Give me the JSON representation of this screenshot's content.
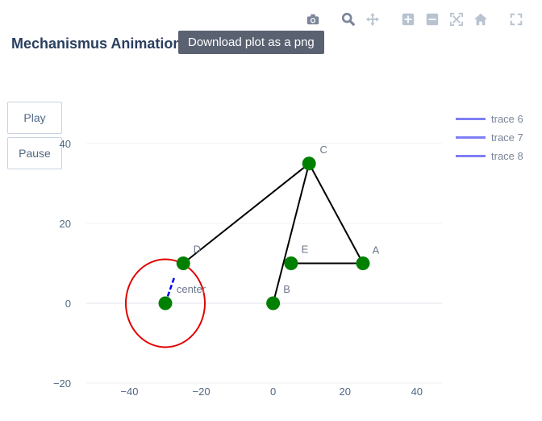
{
  "title": "Mechanismus Animation",
  "tooltip": "Download plot as a png",
  "controls": {
    "play_label": "Play",
    "pause_label": "Pause"
  },
  "modebar": [
    "camera-icon",
    "zoom-icon",
    "pan-icon",
    "zoom-in-icon",
    "zoom-out-icon",
    "autoscale-icon",
    "reset-axes-icon",
    "fullscreen-icon"
  ],
  "chart_data": {
    "type": "scatter",
    "xlim": [
      -52,
      47
    ],
    "ylim": [
      -20,
      40
    ],
    "x_ticks": [
      -40,
      -20,
      0,
      20,
      40
    ],
    "y_ticks": [
      -20,
      0,
      20,
      40
    ],
    "points": [
      {
        "name": "A",
        "x": 25,
        "y": 10
      },
      {
        "name": "B",
        "x": 0,
        "y": 0
      },
      {
        "name": "C",
        "x": 10,
        "y": 35
      },
      {
        "name": "D",
        "x": -25,
        "y": 10
      },
      {
        "name": "E",
        "x": 5,
        "y": 10
      },
      {
        "name": "center",
        "x": -30,
        "y": 0
      }
    ],
    "links": [
      [
        "D",
        "C"
      ],
      [
        "C",
        "A"
      ],
      [
        "C",
        "B"
      ],
      [
        "E",
        "A"
      ]
    ],
    "crank": {
      "from": [
        -30,
        0
      ],
      "to": [
        -27.5,
        6.5
      ],
      "color": "#0000ee"
    },
    "circle": {
      "cx": -30,
      "cy": 0,
      "r": 11,
      "color": "#e00000"
    },
    "point_color": "#008000",
    "link_color": "#000000",
    "legend": [
      {
        "name": "trace 6",
        "color": "#7f7ff5"
      },
      {
        "name": "trace 7",
        "color": "#7f7ff5"
      },
      {
        "name": "trace 8",
        "color": "#7f7ff5"
      }
    ]
  }
}
